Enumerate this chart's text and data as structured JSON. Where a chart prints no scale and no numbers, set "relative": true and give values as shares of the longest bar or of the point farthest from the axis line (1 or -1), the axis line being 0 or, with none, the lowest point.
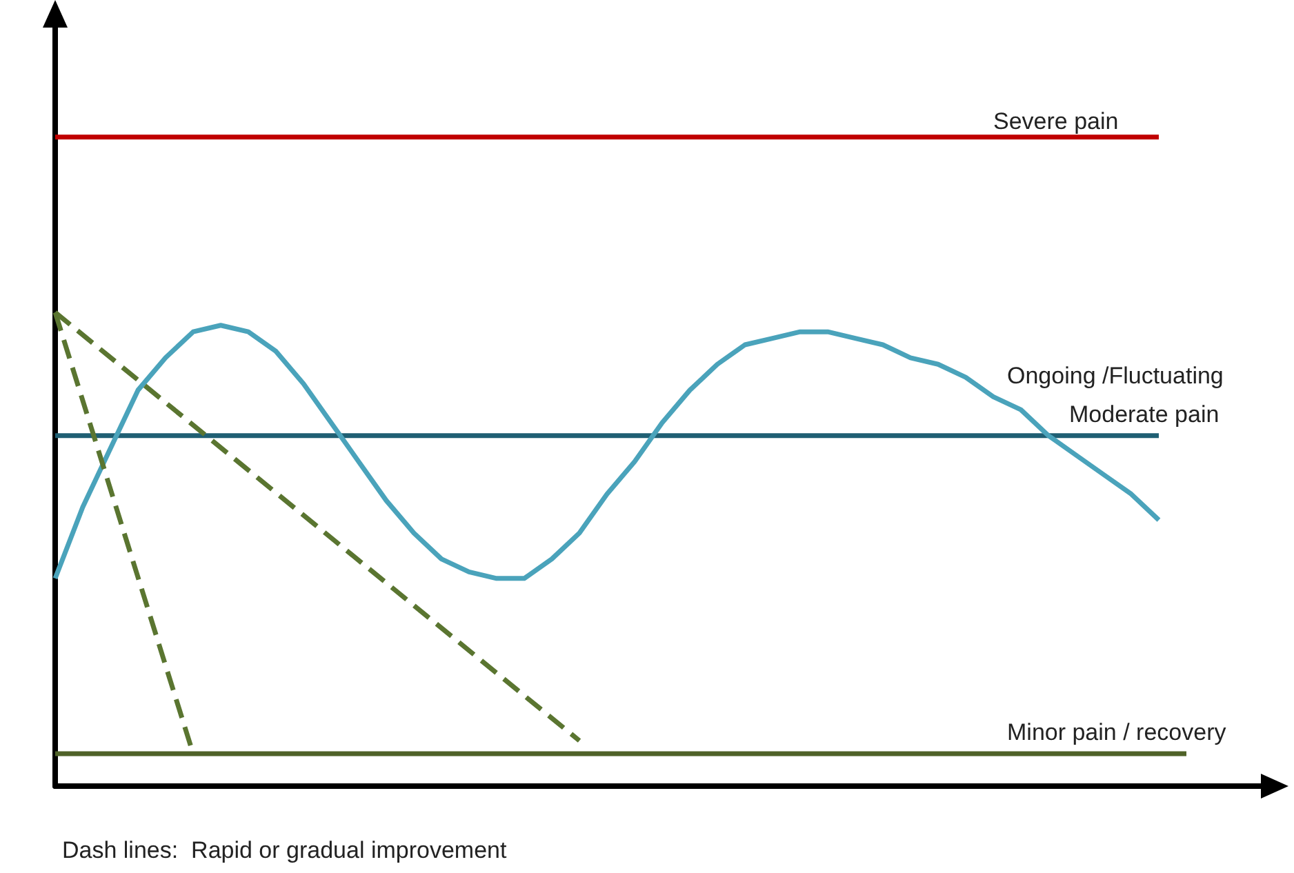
{
  "chart_data": {
    "type": "line",
    "relative": true,
    "grid": false,
    "legend": false,
    "marker": "none",
    "categories": [
      null,
      null,
      null,
      null,
      null,
      null,
      null,
      null,
      null,
      null,
      null,
      null,
      null,
      null,
      null,
      null,
      null,
      null,
      null,
      null,
      null,
      null,
      null,
      null,
      null,
      null,
      null,
      null,
      null,
      null,
      null,
      null,
      null,
      null,
      null,
      null,
      null,
      null,
      null,
      null,
      null,
      null,
      null,
      null,
      null
    ],
    "series": [
      {
        "name": "Severe pain",
        "color": "#c00000",
        "line_style": "solid",
        "values": [
          1,
          null,
          null,
          null,
          null,
          null,
          null,
          null,
          null,
          null,
          null,
          null,
          null,
          null,
          null,
          null,
          null,
          null,
          null,
          null,
          null,
          null,
          null,
          null,
          null,
          null,
          null,
          null,
          null,
          null,
          null,
          null,
          null,
          null,
          null,
          null,
          null,
          null,
          null,
          null,
          1,
          null,
          null,
          null,
          null
        ]
      },
      {
        "name": "Moderate pain",
        "color": "#1f5f73",
        "line_style": "solid",
        "values": [
          0.54,
          null,
          null,
          null,
          null,
          null,
          null,
          null,
          null,
          null,
          null,
          null,
          null,
          null,
          null,
          null,
          null,
          null,
          null,
          null,
          null,
          null,
          null,
          null,
          null,
          null,
          null,
          null,
          null,
          null,
          null,
          null,
          null,
          null,
          null,
          null,
          null,
          null,
          null,
          null,
          0.54,
          null,
          null,
          null,
          null
        ]
      },
      {
        "name": "Ongoing /Fluctuating",
        "color": "#4aa3bb",
        "line_style": "solid",
        "values": [
          0.32,
          0.43,
          0.52,
          0.61,
          0.66,
          0.7,
          0.71,
          0.7,
          0.67,
          0.62,
          0.56,
          0.5,
          0.44,
          0.39,
          0.35,
          0.33,
          0.32,
          0.32,
          0.35,
          0.39,
          0.45,
          0.5,
          0.56,
          0.61,
          0.65,
          0.68,
          0.69,
          0.7,
          0.7,
          0.69,
          0.68,
          0.66,
          0.65,
          0.63,
          0.6,
          0.58,
          0.54,
          0.51,
          0.48,
          0.45,
          0.41,
          null,
          null,
          null,
          null
        ]
      },
      {
        "name": "Minor pain / recovery",
        "color": "#4f6228",
        "line_style": "solid",
        "values": [
          0.05,
          null,
          null,
          null,
          null,
          null,
          null,
          null,
          null,
          null,
          null,
          null,
          null,
          null,
          null,
          null,
          null,
          null,
          null,
          null,
          null,
          null,
          null,
          null,
          null,
          null,
          null,
          null,
          null,
          null,
          null,
          null,
          null,
          null,
          null,
          null,
          null,
          null,
          null,
          null,
          null,
          0.05,
          null,
          null,
          null
        ]
      },
      {
        "color": "#5a7530",
        "line_style": "dashed",
        "values": [
          0.73,
          null,
          null,
          null,
          null,
          0.05,
          null,
          null,
          null,
          null,
          null,
          null,
          null,
          null,
          null,
          null,
          null,
          null,
          null,
          null,
          null,
          null,
          null,
          null,
          null,
          null,
          null,
          null,
          null,
          null,
          null,
          null,
          null,
          null,
          null,
          null,
          null,
          null,
          null,
          null,
          null,
          null,
          null,
          null,
          null
        ]
      },
      {
        "color": "#5a7530",
        "line_style": "dashed",
        "values": [
          0.73,
          null,
          null,
          null,
          null,
          null,
          null,
          null,
          null,
          null,
          null,
          null,
          null,
          null,
          null,
          null,
          null,
          null,
          null,
          0.07,
          null,
          null,
          null,
          null,
          null,
          null,
          null,
          null,
          null,
          null,
          null,
          null,
          null,
          null,
          null,
          null,
          null,
          null,
          null,
          null,
          null,
          null,
          null,
          null,
          null
        ]
      }
    ],
    "annotations": [
      "Dash lines:  Rapid or gradual improvement"
    ]
  }
}
